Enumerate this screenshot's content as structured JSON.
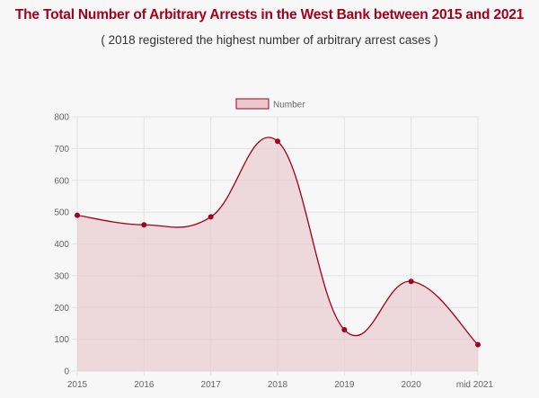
{
  "header": {
    "title": "The Total Number of Arbitrary Arrests in the West Bank between 2015 and 2021",
    "subtitle": "( 2018 registered the highest number of arbitrary arrest cases )"
  },
  "colors": {
    "line": "#a3001b",
    "fill": "#e8c8cc",
    "grid": "#e2e2e2",
    "title": "#a3001b"
  },
  "chart_data": {
    "type": "area",
    "categories": [
      "2015",
      "2016",
      "2017",
      "2018",
      "2019",
      "2020",
      "mid 2021"
    ],
    "series": [
      {
        "name": "Number",
        "values": [
          490,
          460,
          485,
          723,
          130,
          282,
          83
        ]
      }
    ],
    "ylim": [
      0,
      800
    ],
    "yticks": [
      0,
      100,
      200,
      300,
      400,
      500,
      600,
      700,
      800
    ],
    "grid": true,
    "legend": "top-center",
    "title": "The Total Number of Arbitrary Arrests in the West Bank between 2015 and 2021"
  }
}
